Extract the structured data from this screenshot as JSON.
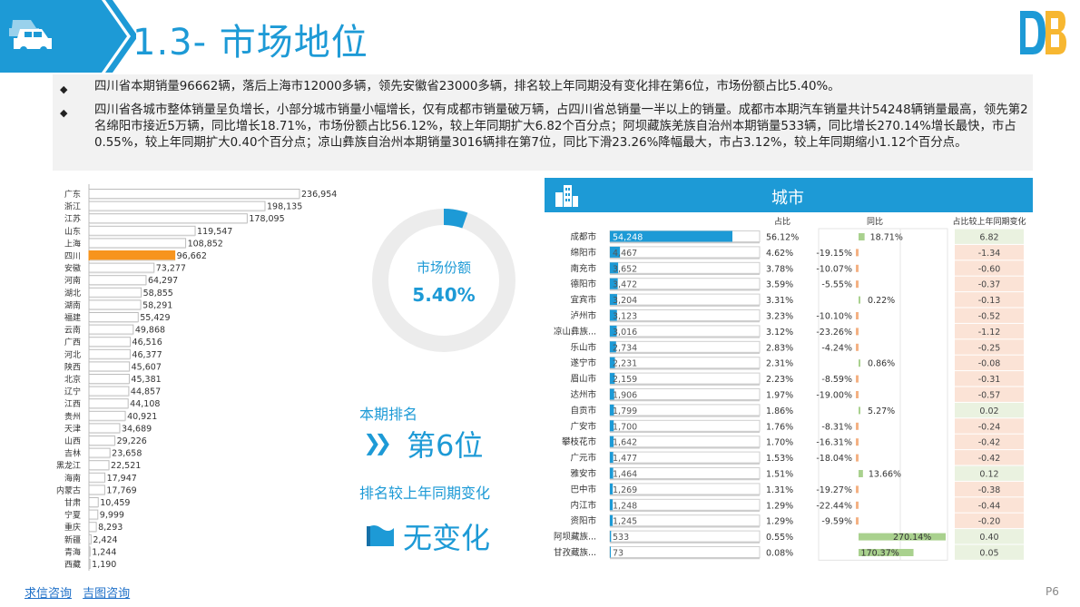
{
  "header": {
    "title": "1.3- 市场地位"
  },
  "bullets": [
    "四川省本期销量96662辆，落后上海市12000多辆，领先安徽省23000多辆，排名较上年同期没有变化排在第6位，市场份额占比5.40%。",
    "四川省各城市整体销量呈负增长，小部分城市销量小幅增长，仅有成都市销量破万辆，占四川省总销量一半以上的销量。成都市本期汽车销量共计54248辆销量最高，领先第2名绵阳市接近5万辆，同比增长18.71%，市场份额占比56.12%，较上年同期扩大6.82个百分点；阿坝藏族羌族自治州本期销量533辆，同比增长270.14%增长最快，市占0.55%，较上年同期扩大0.40个百分点；凉山彝族自治州本期销量3016辆排在第7位，同比下滑23.26%降幅最大，市占3.12%，较上年同期缩小1.12个百分点。"
  ],
  "share": {
    "label": "市场份额",
    "value": "5.40%",
    "fraction": 0.054
  },
  "rank": {
    "label": "本期排名",
    "value": "第6位",
    "change_label": "排名较上年同期变化",
    "change_value": "无变化"
  },
  "colors": {
    "accent": "#1d9ad6",
    "highlight": "#f7941d",
    "bar": "#ffffff",
    "positive_bg": "#eaf2e0",
    "negative_bg": "#fbe3d6"
  },
  "icons": {
    "header": "car-icon",
    "logo": "brand-logo-icon",
    "city": "city-building-icon",
    "change": "flag-icon"
  },
  "footer": {
    "links": [
      "求信咨询",
      "吉图咨询"
    ],
    "page": "P6"
  },
  "chart_data": [
    {
      "type": "bar",
      "orientation": "horizontal",
      "highlight": "四川",
      "categories": [
        "广东",
        "浙江",
        "江苏",
        "山东",
        "上海",
        "四川",
        "安徽",
        "河南",
        "湖北",
        "湖南",
        "福建",
        "云南",
        "广西",
        "河北",
        "陕西",
        "北京",
        "辽宁",
        "江西",
        "贵州",
        "天津",
        "山西",
        "吉林",
        "黑龙江",
        "海南",
        "内蒙古",
        "甘肃",
        "宁夏",
        "重庆",
        "新疆",
        "青海",
        "西藏"
      ],
      "values": [
        236954,
        198135,
        178095,
        119547,
        108852,
        96662,
        73277,
        64297,
        58855,
        58291,
        55429,
        49868,
        46516,
        46377,
        45607,
        45381,
        44857,
        44108,
        40921,
        34689,
        29226,
        23658,
        22521,
        17947,
        17769,
        10459,
        9999,
        8293,
        2424,
        1244,
        1190
      ],
      "labels": [
        "236,954",
        "198,135",
        "178,095",
        "119,547",
        "108,852",
        "96,662",
        "73,277",
        "64,297",
        "58,855",
        "58,291",
        "55,429",
        "49,868",
        "46,516",
        "46,377",
        "45,607",
        "45,381",
        "44,857",
        "44,108",
        "40,921",
        "34,689",
        "29,226",
        "23,658",
        "22,521",
        "17,947",
        "17,769",
        "10,459",
        "9,999",
        "8,293",
        "2,424",
        "1,244",
        "1,190"
      ]
    },
    {
      "type": "table",
      "title": "城市",
      "columns": [
        "",
        "",
        "占比",
        "同比",
        "占比较上年同期变化"
      ],
      "rows": [
        {
          "city": "成都市",
          "sales": 54248,
          "sales_label": "54,248",
          "share": "56.12%",
          "yoy": 18.71,
          "yoy_label": "18.71%",
          "change": "6.82"
        },
        {
          "city": "绵阳市",
          "sales": 4467,
          "sales_label": "4,467",
          "share": "4.62%",
          "yoy": -19.15,
          "yoy_label": "-19.15%",
          "change": "-1.34"
        },
        {
          "city": "南充市",
          "sales": 3652,
          "sales_label": "3,652",
          "share": "3.78%",
          "yoy": -10.07,
          "yoy_label": "-10.07%",
          "change": "-0.60"
        },
        {
          "city": "德阳市",
          "sales": 3472,
          "sales_label": "3,472",
          "share": "3.59%",
          "yoy": -5.55,
          "yoy_label": "-5.55%",
          "change": "-0.37"
        },
        {
          "city": "宜宾市",
          "sales": 3204,
          "sales_label": "3,204",
          "share": "3.31%",
          "yoy": 0.22,
          "yoy_label": "0.22%",
          "change": "-0.13"
        },
        {
          "city": "泸州市",
          "sales": 3123,
          "sales_label": "3,123",
          "share": "3.23%",
          "yoy": -10.1,
          "yoy_label": "-10.10%",
          "change": "-0.52"
        },
        {
          "city": "凉山彝族...",
          "sales": 3016,
          "sales_label": "3,016",
          "share": "3.12%",
          "yoy": -23.26,
          "yoy_label": "-23.26%",
          "change": "-1.12"
        },
        {
          "city": "乐山市",
          "sales": 2734,
          "sales_label": "2,734",
          "share": "2.83%",
          "yoy": -4.24,
          "yoy_label": "-4.24%",
          "change": "-0.25"
        },
        {
          "city": "遂宁市",
          "sales": 2231,
          "sales_label": "2,231",
          "share": "2.31%",
          "yoy": 0.86,
          "yoy_label": "0.86%",
          "change": "-0.08"
        },
        {
          "city": "眉山市",
          "sales": 2159,
          "sales_label": "2,159",
          "share": "2.23%",
          "yoy": -8.59,
          "yoy_label": "-8.59%",
          "change": "-0.31"
        },
        {
          "city": "达州市",
          "sales": 1906,
          "sales_label": "1,906",
          "share": "1.97%",
          "yoy": -19.0,
          "yoy_label": "-19.00%",
          "change": "-0.57"
        },
        {
          "city": "自贡市",
          "sales": 1799,
          "sales_label": "1,799",
          "share": "1.86%",
          "yoy": 5.27,
          "yoy_label": "5.27%",
          "change": "0.02"
        },
        {
          "city": "广安市",
          "sales": 1700,
          "sales_label": "1,700",
          "share": "1.76%",
          "yoy": -8.31,
          "yoy_label": "-8.31%",
          "change": "-0.24"
        },
        {
          "city": "攀枝花市",
          "sales": 1642,
          "sales_label": "1,642",
          "share": "1.70%",
          "yoy": -16.31,
          "yoy_label": "-16.31%",
          "change": "-0.42"
        },
        {
          "city": "广元市",
          "sales": 1477,
          "sales_label": "1,477",
          "share": "1.53%",
          "yoy": -18.04,
          "yoy_label": "-18.04%",
          "change": "-0.42"
        },
        {
          "city": "雅安市",
          "sales": 1464,
          "sales_label": "1,464",
          "share": "1.51%",
          "yoy": 13.66,
          "yoy_label": "13.66%",
          "change": "0.12"
        },
        {
          "city": "巴中市",
          "sales": 1269,
          "sales_label": "1,269",
          "share": "1.31%",
          "yoy": -19.27,
          "yoy_label": "-19.27%",
          "change": "-0.38"
        },
        {
          "city": "内江市",
          "sales": 1248,
          "sales_label": "1,248",
          "share": "1.29%",
          "yoy": -22.44,
          "yoy_label": "-22.44%",
          "change": "-0.44"
        },
        {
          "city": "资阳市",
          "sales": 1245,
          "sales_label": "1,245",
          "share": "1.29%",
          "yoy": -9.59,
          "yoy_label": "-9.59%",
          "change": "-0.20"
        },
        {
          "city": "阿坝藏族...",
          "sales": 533,
          "sales_label": "533",
          "share": "0.55%",
          "yoy": 270.14,
          "yoy_label": "270.14%",
          "change": "0.40"
        },
        {
          "city": "甘孜藏族...",
          "sales": 73,
          "sales_label": "73",
          "share": "0.08%",
          "yoy": 170.37,
          "yoy_label": "170.37%",
          "change": "0.05"
        }
      ]
    }
  ]
}
